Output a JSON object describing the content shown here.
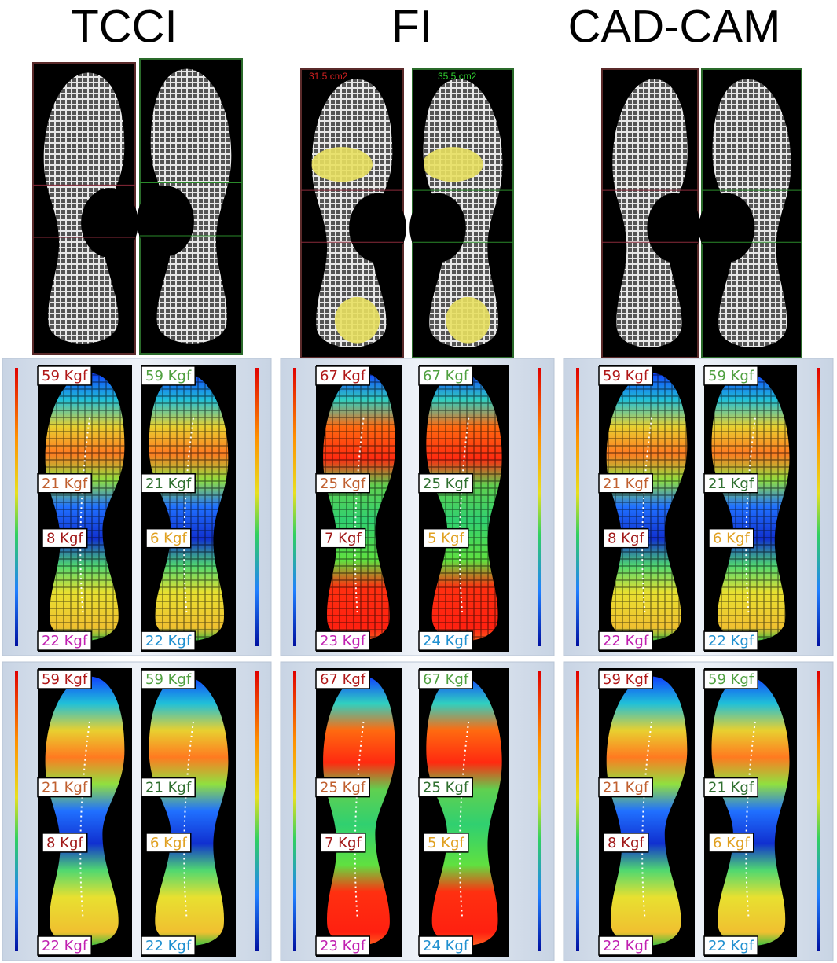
{
  "columns": [
    {
      "title": "TCCI",
      "heat_rows": [
        {
          "left": [
            "59 Kgf",
            "21 Kgf",
            "8 Kgf",
            "22 Kgf"
          ],
          "right": [
            "59 Kgf",
            "21 Kgf",
            "6 Kgf",
            "22 Kgf"
          ]
        },
        {
          "left": [
            "59 Kgf",
            "21 Kgf",
            "8 Kgf",
            "22 Kgf"
          ],
          "right": [
            "59 Kgf",
            "21 Kgf",
            "6 Kgf",
            "22 Kgf"
          ]
        }
      ]
    },
    {
      "title": "FI",
      "contact_areas": [
        "31.5 cm2",
        "35.5 cm2"
      ],
      "heat_rows": [
        {
          "left": [
            "67 Kgf",
            "25 Kgf",
            "7 Kgf",
            "23 Kgf"
          ],
          "right": [
            "67 Kgf",
            "25 Kgf",
            "5 Kgf",
            "24 Kgf"
          ]
        },
        {
          "left": [
            "67 Kgf",
            "25 Kgf",
            "7 Kgf",
            "23 Kgf"
          ],
          "right": [
            "67 Kgf",
            "25 Kgf",
            "5 Kgf",
            "24 Kgf"
          ]
        }
      ]
    },
    {
      "title": "CAD-CAM",
      "heat_rows": [
        {
          "left": [
            "59 Kgf",
            "21 Kgf",
            "8 Kgf",
            "22 Kgf"
          ],
          "right": [
            "59 Kgf",
            "21 Kgf",
            "6 Kgf",
            "22 Kgf"
          ]
        },
        {
          "left": [
            "59 Kgf",
            "21 Kgf",
            "8 Kgf",
            "22 Kgf"
          ],
          "right": [
            "59 Kgf",
            "21 Kgf",
            "6 Kgf",
            "22 Kgf"
          ]
        }
      ]
    }
  ]
}
